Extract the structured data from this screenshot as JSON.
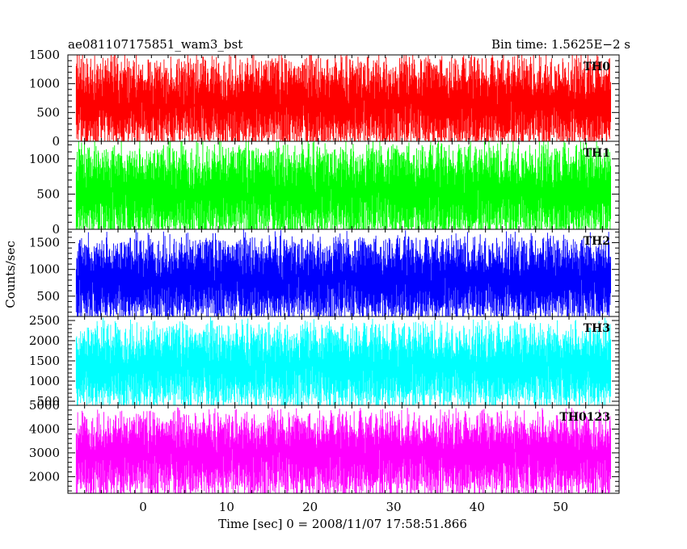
{
  "chart_data": {
    "type": "line",
    "title_left": "ae081107175851_wam3_bst",
    "title_right": "Bin time: 1.5625E−2 s",
    "xlabel": "Time [sec] 0 = 2008/11/07 17:58:51.866",
    "ylabel": "Counts/sec",
    "xlim": [
      -9,
      57
    ],
    "data_range": [
      -8,
      56
    ],
    "bin_time": 0.015625,
    "x_ticks": [
      0,
      10,
      20,
      30,
      40,
      50
    ],
    "grid": false,
    "panels": [
      {
        "name": "TH0",
        "color": "#ff0000",
        "ylim": [
          0,
          1500
        ],
        "y_ticks": [
          0,
          500,
          1000,
          1500
        ],
        "mean": 600,
        "lower_envelope": 150,
        "upper_envelope": 1150,
        "max_spike": 1500
      },
      {
        "name": "TH1",
        "color": "#00ff00",
        "ylim": [
          0,
          1250
        ],
        "y_ticks": [
          0,
          500,
          1000
        ],
        "mean": 480,
        "lower_envelope": 100,
        "upper_envelope": 950,
        "max_spike": 1150
      },
      {
        "name": "TH2",
        "color": "#0000ff",
        "ylim": [
          120,
          1750
        ],
        "y_ticks": [
          500,
          1000,
          1500
        ],
        "mean": 750,
        "lower_envelope": 300,
        "upper_envelope": 1300,
        "max_spike": 1600
      },
      {
        "name": "TH3",
        "color": "#00ffff",
        "ylim": [
          400,
          2600
        ],
        "y_ticks": [
          500,
          1000,
          1500,
          2000,
          2500
        ],
        "mean": 1300,
        "lower_envelope": 700,
        "upper_envelope": 2000,
        "max_spike": 2500
      },
      {
        "name": "TH0123",
        "color": "#ff00ff",
        "ylim": [
          1300,
          5000
        ],
        "y_ticks": [
          2000,
          3000,
          4000,
          5000
        ],
        "mean": 2900,
        "lower_envelope": 1800,
        "upper_envelope": 4000,
        "max_spike": 4900
      }
    ]
  }
}
